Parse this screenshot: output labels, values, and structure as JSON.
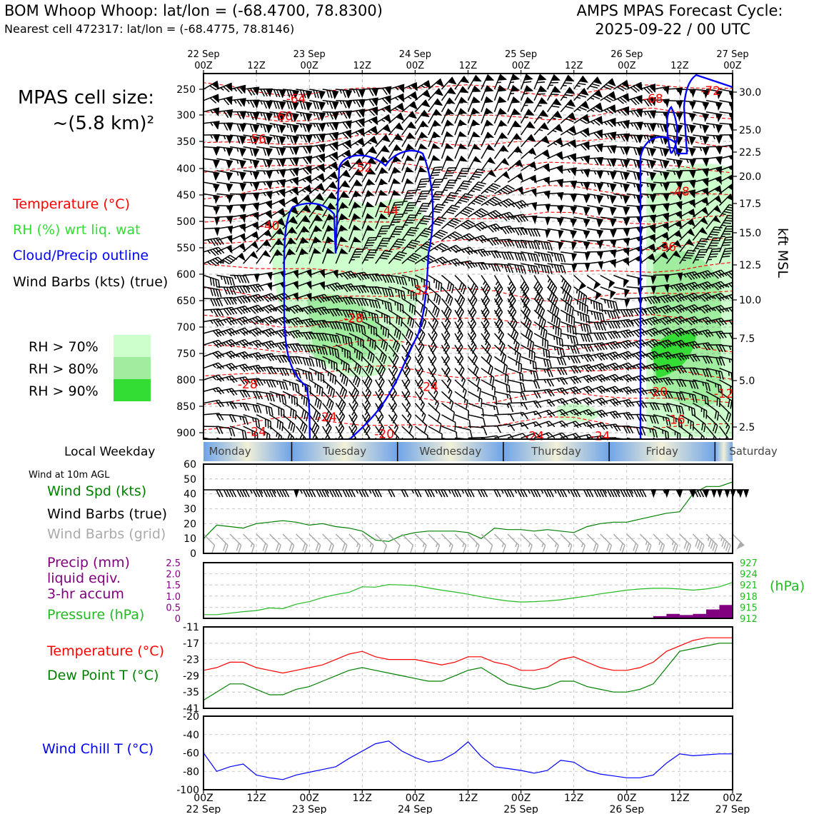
{
  "header": {
    "title_left": "BOM Whoop Whoop: lat/lon = (-68.4700, 78.8300)",
    "subtitle_left": "Nearest cell 472317: lat/lon = (-68.4775, 78.8146)",
    "title_right_1": "AMPS MPAS Forecast Cycle:",
    "title_right_2": "2025-09-22 / 00 UTC"
  },
  "legend": {
    "cell_size_1": "MPAS cell size:",
    "cell_size_2": "~(5.8 km)²",
    "temperature": "Temperature (°C)",
    "rh": "RH (%) wrt liq. wat",
    "cloud": "Cloud/Precip outline",
    "wind": "Wind Barbs (kts) (true)",
    "rh70": "RH > 70%",
    "rh80": "RH > 80%",
    "rh90": "RH > 90%",
    "local_weekday": "Local Weekday",
    "wind10m": "Wind at 10m AGL",
    "wind_spd": "Wind Spd (kts)",
    "wind_barbs_true": "Wind Barbs (true)",
    "wind_barbs_grid": "Wind Barbs (grid)",
    "precip_1": "Precip (mm)",
    "precip_2": "liquid eqiv.",
    "precip_3": "3-hr accum",
    "pressure": "Pressure (hPa)",
    "temp2": "Temperature (°C)",
    "dewpoint": "Dew Point T (°C)",
    "windchill": "Wind Chill T (°C)",
    "hpa_unit": "(hPa)",
    "kft": "kft MSL"
  },
  "colors": {
    "temp": "#ff0000",
    "rh70": "#ccffcc",
    "rh80": "#a0eda0",
    "rh90": "#33dd33",
    "cloud": "#0000ff",
    "dew": "#008000",
    "pressure": "#22bb22",
    "precip": "#800080",
    "grid_barb": "#aaaaaa"
  },
  "chart_data": [
    {
      "type": "heatmap",
      "title": "Vertical cross-section",
      "time_ticks_top": [
        {
          "date": "22 Sep",
          "hour": "00Z",
          "h": 0
        },
        {
          "date": "",
          "hour": "12Z",
          "h": 12
        },
        {
          "date": "23 Sep",
          "hour": "00Z",
          "h": 24
        },
        {
          "date": "",
          "hour": "12Z",
          "h": 36
        },
        {
          "date": "24 Sep",
          "hour": "00Z",
          "h": 48
        },
        {
          "date": "",
          "hour": "12Z",
          "h": 60
        },
        {
          "date": "25 Sep",
          "hour": "00Z",
          "h": 72
        },
        {
          "date": "",
          "hour": "12Z",
          "h": 84
        },
        {
          "date": "26 Sep",
          "hour": "00Z",
          "h": 96
        },
        {
          "date": "",
          "hour": "12Z",
          "h": 108
        },
        {
          "date": "27 Sep",
          "hour": "00Z",
          "h": 120
        }
      ],
      "pressure_ticks": [
        "250",
        "300",
        "350",
        "400",
        "450",
        "500",
        "550",
        "600",
        "650",
        "700",
        "750",
        "800",
        "850",
        "900"
      ],
      "height_ticks_kft": [
        "30.0",
        "25.0",
        "22.5",
        "20.0",
        "17.5",
        "15.0",
        "12.5",
        "10.0",
        "7.5",
        "5.0",
        "2.5"
      ],
      "temp_labels": [
        {
          "t": "-64",
          "h": 21,
          "p": 268
        },
        {
          "t": "-68",
          "h": 102,
          "p": 268
        },
        {
          "t": "-72",
          "h": 115,
          "p": 253
        },
        {
          "t": "-60",
          "h": 18,
          "p": 302
        },
        {
          "t": "-56",
          "h": 12,
          "p": 345
        },
        {
          "t": "-52",
          "h": 36,
          "p": 398
        },
        {
          "t": "-48",
          "h": 108,
          "p": 443
        },
        {
          "t": "-44",
          "h": 42,
          "p": 480
        },
        {
          "t": "-40",
          "h": 15,
          "p": 508
        },
        {
          "t": "-36",
          "h": 105,
          "p": 548
        },
        {
          "t": "-32",
          "h": 49,
          "p": 630
        },
        {
          "t": "-28",
          "h": 34,
          "p": 683
        },
        {
          "t": "-28",
          "h": 10,
          "p": 808
        },
        {
          "t": "-24",
          "h": 51,
          "p": 813
        },
        {
          "t": "-20",
          "h": 103,
          "p": 822
        },
        {
          "t": "-12",
          "h": 118,
          "p": 826
        },
        {
          "t": "-24",
          "h": 28,
          "p": 870
        },
        {
          "t": "-24",
          "h": 12,
          "p": 898
        },
        {
          "t": "-20",
          "h": 41,
          "p": 902
        },
        {
          "t": "-24",
          "h": 75,
          "p": 906
        },
        {
          "t": "-24",
          "h": 90,
          "p": 906
        },
        {
          "t": "-16",
          "h": 107,
          "p": 875
        }
      ],
      "weekdays": [
        "Monday",
        "Tuesday",
        "Wednesday",
        "Thursday",
        "Friday",
        "Saturday"
      ]
    },
    {
      "type": "line",
      "title": "Wind Spd (kts)",
      "hours": [
        0,
        3,
        6,
        9,
        12,
        15,
        18,
        21,
        24,
        27,
        30,
        33,
        36,
        39,
        42,
        45,
        48,
        51,
        54,
        57,
        60,
        63,
        66,
        69,
        72,
        75,
        78,
        81,
        84,
        87,
        90,
        93,
        96,
        99,
        102,
        105,
        108,
        111,
        114,
        117,
        120
      ],
      "speed": [
        10,
        19,
        18,
        17,
        20,
        21,
        22,
        21,
        19,
        20,
        18,
        17,
        15,
        9,
        8,
        12,
        14,
        15,
        15,
        15,
        14,
        10,
        17,
        16,
        16,
        15,
        16,
        15,
        14,
        18,
        20,
        21,
        21,
        23,
        25,
        27,
        28,
        40,
        45,
        45,
        48
      ],
      "ylim": [
        0,
        60
      ],
      "yticks": [
        "0",
        "10",
        "20",
        "30",
        "40",
        "50",
        "60"
      ]
    },
    {
      "type": "line",
      "title": "Precip / Pressure",
      "precip_hours": [
        102,
        105,
        108,
        111,
        114,
        117
      ],
      "precip_mm": [
        0.1,
        0.2,
        0.15,
        0.2,
        0.4,
        0.6
      ],
      "pressure_hpa": [
        913.0,
        913.0,
        913.4,
        913.8,
        914.1,
        914.8,
        914.6,
        915.8,
        916.5,
        917.6,
        918.4,
        919.0,
        920.5,
        920.4,
        921.1,
        921.0,
        920.8,
        920.2,
        919.6,
        919.1,
        918.5,
        917.8,
        917.2,
        916.7,
        916.4,
        916.5,
        916.7,
        917.0,
        917.5,
        918.0,
        918.6,
        919.1,
        919.6,
        919.9,
        920.1,
        920.1,
        919.9,
        919.6,
        919.9,
        920.5,
        921.7
      ],
      "precip_ylim": [
        0,
        2.5
      ],
      "precip_ticks": [
        "0",
        "0.5",
        "1.0",
        "1.5",
        "2.0",
        "2.5"
      ],
      "pressure_ylim": [
        912,
        927
      ],
      "pressure_ticks": [
        "912",
        "915",
        "918",
        "921",
        "924",
        "927"
      ]
    },
    {
      "type": "line",
      "title": "Temperature / Dew Point",
      "temperature": [
        -27,
        -26,
        -24,
        -24,
        -26,
        -27,
        -28,
        -27,
        -26,
        -25,
        -23,
        -21,
        -20,
        -22,
        -23,
        -23,
        -23,
        -24,
        -25,
        -24,
        -22,
        -22,
        -24,
        -25,
        -27,
        -27,
        -26,
        -23,
        -22,
        -24,
        -26,
        -27,
        -27,
        -26,
        -24,
        -20,
        -18,
        -16,
        -15,
        -15,
        -15
      ],
      "dewpoint": [
        -38,
        -35,
        -32,
        -32,
        -34,
        -36,
        -36,
        -34,
        -33,
        -31,
        -29,
        -27,
        -26,
        -27,
        -28,
        -29,
        -30,
        -31,
        -31,
        -29,
        -27,
        -26,
        -29,
        -32,
        -33,
        -34,
        -33,
        -31,
        -31,
        -33,
        -34,
        -35,
        -35,
        -34,
        -32,
        -26,
        -20,
        -19,
        -18,
        -17,
        -17
      ],
      "ylim": [
        -41,
        -11
      ],
      "yticks": [
        "-11",
        "-17",
        "-23",
        "-29",
        "-35",
        "-41"
      ]
    },
    {
      "type": "line",
      "title": "Wind Chill T (°C)",
      "windchill": [
        -60,
        -80,
        -75,
        -72,
        -84,
        -87,
        -89,
        -84,
        -81,
        -78,
        -75,
        -66,
        -58,
        -50,
        -47,
        -58,
        -65,
        -70,
        -68,
        -60,
        -48,
        -64,
        -75,
        -77,
        -79,
        -82,
        -79,
        -68,
        -70,
        -79,
        -83,
        -85,
        -87,
        -87,
        -84,
        -71,
        -61,
        -63,
        -62,
        -61,
        -61
      ],
      "ylim": [
        -100,
        -20
      ],
      "yticks": [
        "-20",
        "-40",
        "-60",
        "-80",
        "-100"
      ],
      "xticks": [
        {
          "hour": "00Z",
          "date": "22 Sep"
        },
        {
          "hour": "12Z",
          "date": ""
        },
        {
          "hour": "00Z",
          "date": "23 Sep"
        },
        {
          "hour": "12Z",
          "date": ""
        },
        {
          "hour": "00Z",
          "date": "24 Sep"
        },
        {
          "hour": "12Z",
          "date": ""
        },
        {
          "hour": "00Z",
          "date": "25 Sep"
        },
        {
          "hour": "12Z",
          "date": ""
        },
        {
          "hour": "00Z",
          "date": "26 Sep"
        },
        {
          "hour": "12Z",
          "date": ""
        },
        {
          "hour": "00Z",
          "date": "27 Sep"
        }
      ]
    }
  ]
}
